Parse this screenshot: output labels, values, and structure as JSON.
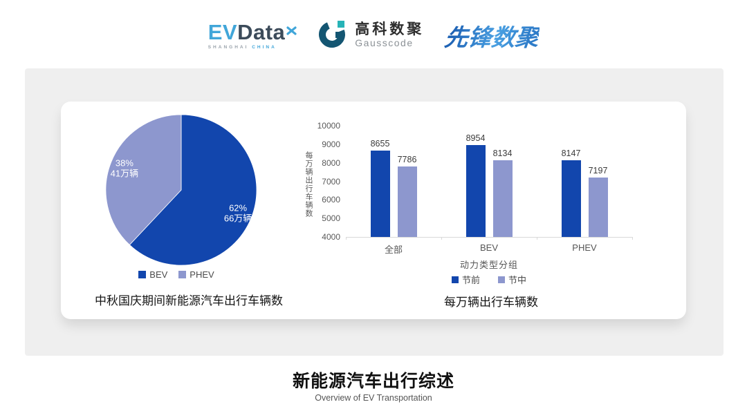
{
  "header": {
    "evdata": {
      "part1": "EV",
      "part2": "Data",
      "sub_left": "SHANGHAI",
      "sub_right": "CHINA"
    },
    "gausscode": {
      "name_cn": "高科数聚",
      "name_en": "Gausscode"
    },
    "pioneer": {
      "wordmark": "先锋数聚"
    }
  },
  "colors": {
    "series_dark_blue": "#1246ad",
    "series_light_purple": "#8d97ce",
    "panel_gray": "#efefef",
    "evdata_blue": "#41a6d9",
    "gauss_navy": "#145672",
    "gauss_teal": "#27b3b7",
    "pioneer_blue": "#2e7cc9"
  },
  "footer": {
    "title": "新能源汽车出行综述",
    "subtitle": "Overview of EV Transportation"
  },
  "chart_data": [
    {
      "type": "pie",
      "title": "中秋国庆期间新能源汽车出行车辆数",
      "start_angle_deg": 0,
      "direction": "clockwise",
      "legend_position": "bottom",
      "slices": [
        {
          "label": "BEV",
          "percent": 62,
          "percent_label": "62%",
          "value_label": "66万辆",
          "color": "#1246ad",
          "text_color": "#ffffff"
        },
        {
          "label": "PHEV",
          "percent": 38,
          "percent_label": "38%",
          "value_label": "41万辆",
          "color": "#8d97ce",
          "text_color": "#ffffff"
        }
      ]
    },
    {
      "type": "bar",
      "title": "每万辆出行车辆数",
      "xlabel": "动力类型分组",
      "ylabel": "每万辆出行车辆数",
      "categories": [
        "全部",
        "BEV",
        "PHEV"
      ],
      "series": [
        {
          "name": "节前",
          "color": "#1246ad",
          "values": [
            8655,
            8954,
            8147
          ]
        },
        {
          "name": "节中",
          "color": "#8d97ce",
          "values": [
            7786,
            8134,
            7197
          ]
        }
      ],
      "ylim": [
        4000,
        10000
      ],
      "yticks": [
        4000,
        5000,
        6000,
        7000,
        8000,
        9000,
        10000
      ],
      "grid": false,
      "legend_position": "bottom"
    }
  ]
}
